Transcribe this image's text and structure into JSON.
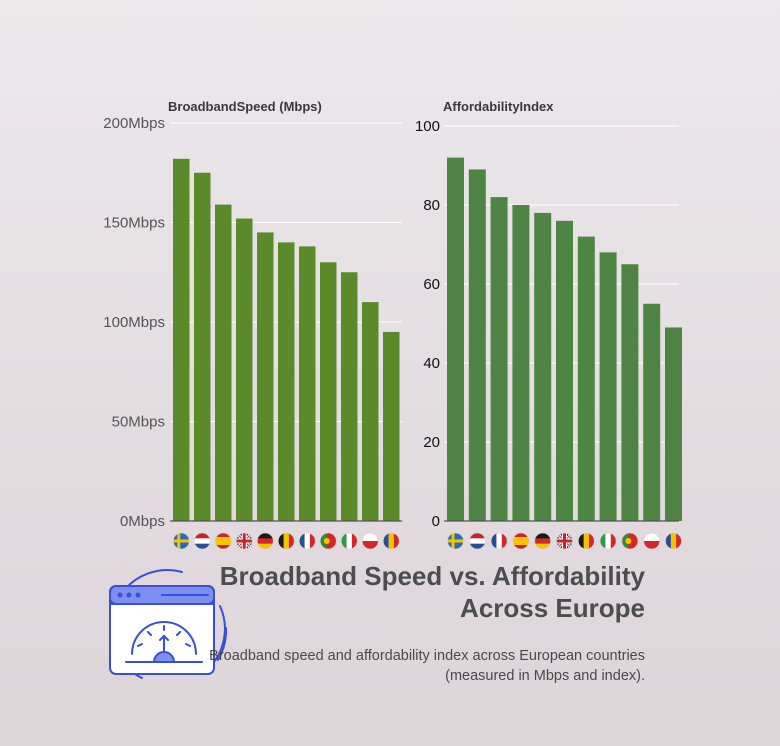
{
  "title": "Broadband Speed vs. Affordability Across Europe",
  "subtitle": "Broadband speed and affordability index across European countries (measured in Mbps and index).",
  "colors": {
    "speed_bar": "#5b8a2b",
    "afford_bar": "#4f8544",
    "text": "#4a4a4a",
    "icon": "#3a4fd6"
  },
  "logo_icon": "browser-speedometer-icon",
  "chart_data": [
    {
      "type": "bar",
      "title": "BroadbandSpeed (Mbps)",
      "categories": [
        "Sweden",
        "Netherlands",
        "Spain",
        "United Kingdom",
        "Germany",
        "Belgium",
        "France",
        "Portugal",
        "Italy",
        "Poland",
        "Romania"
      ],
      "values": [
        182,
        175,
        159,
        152,
        145,
        140,
        138,
        130,
        125,
        110,
        95
      ],
      "ylim": [
        0,
        200
      ],
      "yticks": [
        0,
        50,
        100,
        150,
        200
      ],
      "ytick_labels": [
        "0Mbps",
        "50Mbps",
        "100Mbps",
        "150Mbps",
        "200Mbps"
      ],
      "grid": true
    },
    {
      "type": "bar",
      "title": "AffordabilityIndex",
      "categories": [
        "Sweden",
        "Netherlands",
        "France",
        "Spain",
        "Germany",
        "United Kingdom",
        "Belgium",
        "Italy",
        "Portugal",
        "Poland",
        "Romania"
      ],
      "values": [
        92,
        89,
        82,
        80,
        78,
        76,
        72,
        68,
        65,
        55,
        49
      ],
      "ylim": [
        0,
        100
      ],
      "yticks": [
        0,
        20,
        40,
        60,
        80,
        100
      ],
      "ytick_labels": [
        "0",
        "20",
        "40",
        "60",
        "80",
        "100"
      ],
      "grid": true
    }
  ]
}
